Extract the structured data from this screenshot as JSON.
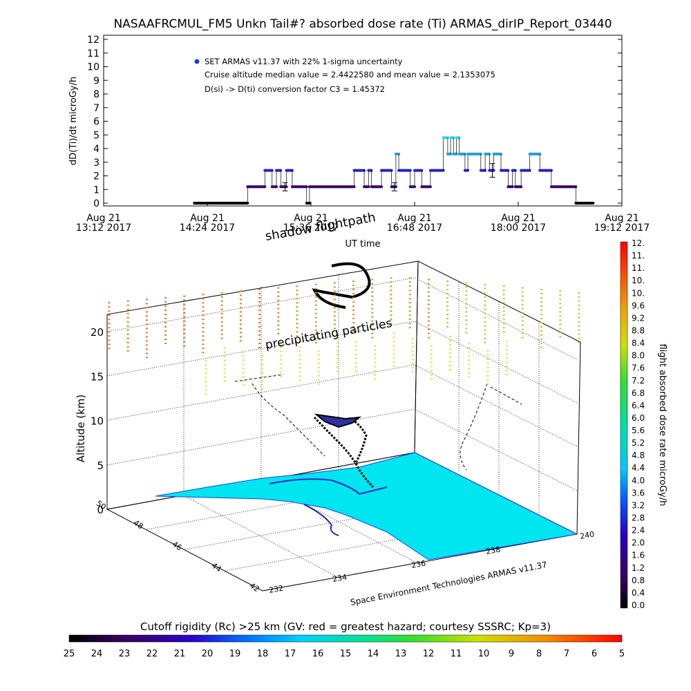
{
  "title": "NASAAFRCMUL_FM5 Unkn Tail#? absorbed dose rate (Ti) ARMAS_dirIP_Report_03440",
  "chart_data": [
    {
      "type": "scatter",
      "ylabel": "dD(Ti)/dt microGy/h",
      "xlabel": "UT time",
      "ylim": [
        0,
        12
      ],
      "yticks": [
        "0",
        "1",
        "2",
        "3",
        "4",
        "5",
        "6",
        "7",
        "8",
        "9",
        "10",
        "11",
        "12"
      ],
      "xticks": [
        {
          "top": "Aug 21",
          "bottom": "13:12 2017",
          "t": 0
        },
        {
          "top": "Aug 21",
          "bottom": "14:24 2017",
          "t": 72
        },
        {
          "top": "Aug 21",
          "bottom": "15:36 2017",
          "t": 144
        },
        {
          "top": "Aug 21",
          "bottom": "16:48 2017",
          "t": 216
        },
        {
          "top": "Aug 21",
          "bottom": "18:00 2017",
          "t": 288
        },
        {
          "top": "Aug 21",
          "bottom": "19:12 2017",
          "t": 360
        }
      ],
      "time_unit": "minutes after 13:12 UT",
      "legend": [
        "SET ARMAS v11.37 with 22% 1-sigma uncertainty"
      ],
      "annotations": [
        "Cruise altitude median value = 2.4422580 and mean value = 2.1353075",
        "D(si) -> D(ti) conversion factor C3 = 1.45372"
      ],
      "segments": [
        {
          "t0": 63,
          "t1": 100,
          "v": 0
        },
        {
          "t0": 100,
          "t1": 112,
          "v": 1.2
        },
        {
          "t0": 112,
          "t1": 117,
          "v": 2.4
        },
        {
          "t0": 117,
          "t1": 120,
          "v": 1.2
        },
        {
          "t0": 120,
          "t1": 123,
          "v": 2.4
        },
        {
          "t0": 123,
          "t1": 127,
          "v": 1.2
        },
        {
          "t0": 127,
          "t1": 131,
          "v": 2.4
        },
        {
          "t0": 131,
          "t1": 141,
          "v": 1.2
        },
        {
          "t0": 141,
          "t1": 143,
          "v": 0
        },
        {
          "t0": 143,
          "t1": 174,
          "v": 1.2
        },
        {
          "t0": 174,
          "t1": 181,
          "v": 2.4
        },
        {
          "t0": 181,
          "t1": 184,
          "v": 1.2
        },
        {
          "t0": 184,
          "t1": 186,
          "v": 2.4
        },
        {
          "t0": 186,
          "t1": 193,
          "v": 1.2
        },
        {
          "t0": 193,
          "t1": 200,
          "v": 2.4
        },
        {
          "t0": 200,
          "t1": 203,
          "v": 1.2
        },
        {
          "t0": 203,
          "t1": 205,
          "v": 3.6
        },
        {
          "t0": 205,
          "t1": 213,
          "v": 2.4
        },
        {
          "t0": 213,
          "t1": 216,
          "v": 1.2
        },
        {
          "t0": 216,
          "t1": 221,
          "v": 2.4
        },
        {
          "t0": 221,
          "t1": 227,
          "v": 1.2
        },
        {
          "t0": 227,
          "t1": 236,
          "v": 2.4
        },
        {
          "t0": 236,
          "t1": 239,
          "v": 4.8
        },
        {
          "t0": 239,
          "t1": 241,
          "v": 3.6
        },
        {
          "t0": 241,
          "t1": 243,
          "v": 4.8
        },
        {
          "t0": 243,
          "t1": 245,
          "v": 3.6
        },
        {
          "t0": 245,
          "t1": 247,
          "v": 4.8
        },
        {
          "t0": 247,
          "t1": 251,
          "v": 3.6
        },
        {
          "t0": 251,
          "t1": 253,
          "v": 2.4
        },
        {
          "t0": 253,
          "t1": 262,
          "v": 3.6
        },
        {
          "t0": 262,
          "t1": 265,
          "v": 2.4
        },
        {
          "t0": 265,
          "t1": 268,
          "v": 3.6
        },
        {
          "t0": 268,
          "t1": 271,
          "v": 2.4
        },
        {
          "t0": 271,
          "t1": 276,
          "v": 3.6
        },
        {
          "t0": 276,
          "t1": 281,
          "v": 2.4
        },
        {
          "t0": 281,
          "t1": 284,
          "v": 1.2
        },
        {
          "t0": 284,
          "t1": 286,
          "v": 2.4
        },
        {
          "t0": 286,
          "t1": 290,
          "v": 1.2
        },
        {
          "t0": 290,
          "t1": 296,
          "v": 2.4
        },
        {
          "t0": 296,
          "t1": 303,
          "v": 3.6
        },
        {
          "t0": 303,
          "t1": 311,
          "v": 2.4
        },
        {
          "t0": 311,
          "t1": 315,
          "v": 1.2
        },
        {
          "t0": 315,
          "t1": 328,
          "v": 1.2
        },
        {
          "t0": 328,
          "t1": 340,
          "v": 0
        }
      ],
      "error_bars": [
        {
          "t": 126,
          "v": 1.2,
          "err": 0.3
        },
        {
          "t": 202,
          "v": 1.2,
          "err": 0.3
        },
        {
          "t": 270,
          "v": 2.4,
          "err": 0.5
        }
      ]
    },
    {
      "type": "scatter",
      "subtype": "3d-flight-path",
      "zlabel": "Altitude (km)",
      "zticks": [
        "0",
        "5",
        "10",
        "15",
        "20"
      ],
      "zlim": [
        0,
        22
      ],
      "lat_ticks": [
        "42",
        "44",
        "46",
        "48",
        "50"
      ],
      "lon_ticks": [
        "232",
        "234",
        "236",
        "238",
        "240"
      ],
      "labels": [
        "shadow flightpath",
        "precipitating particles"
      ],
      "credit": "Space Environment Technologies ARMAS v11.37"
    }
  ],
  "colorbar_right": {
    "label": "flight absorbed dose rate microGy/h",
    "ticks": [
      "0.0",
      "0.4",
      "0.8",
      "1.2",
      "1.6",
      "2.0",
      "2.4",
      "2.8",
      "3.2",
      "3.6",
      "4.0",
      "4.4",
      "4.8",
      "5.2",
      "5.6",
      "6.0",
      "6.4",
      "6.8",
      "7.2",
      "7.6",
      "8.0",
      "8.4",
      "8.8",
      "9.2",
      "9.6",
      "10.",
      "10.",
      "11.",
      "11.",
      "12."
    ]
  },
  "colorbar_bottom": {
    "title": "Cutoff rigidity (Rc) >25 km (GV: red = greatest hazard; courtesy SSSRC; Kp=3)",
    "ticks": [
      "25",
      "24",
      "23",
      "22",
      "21",
      "20",
      "19",
      "18",
      "17",
      "16",
      "15",
      "14",
      "13",
      "12",
      "11",
      "10",
      "9",
      "8",
      "7",
      "6",
      "5"
    ]
  }
}
